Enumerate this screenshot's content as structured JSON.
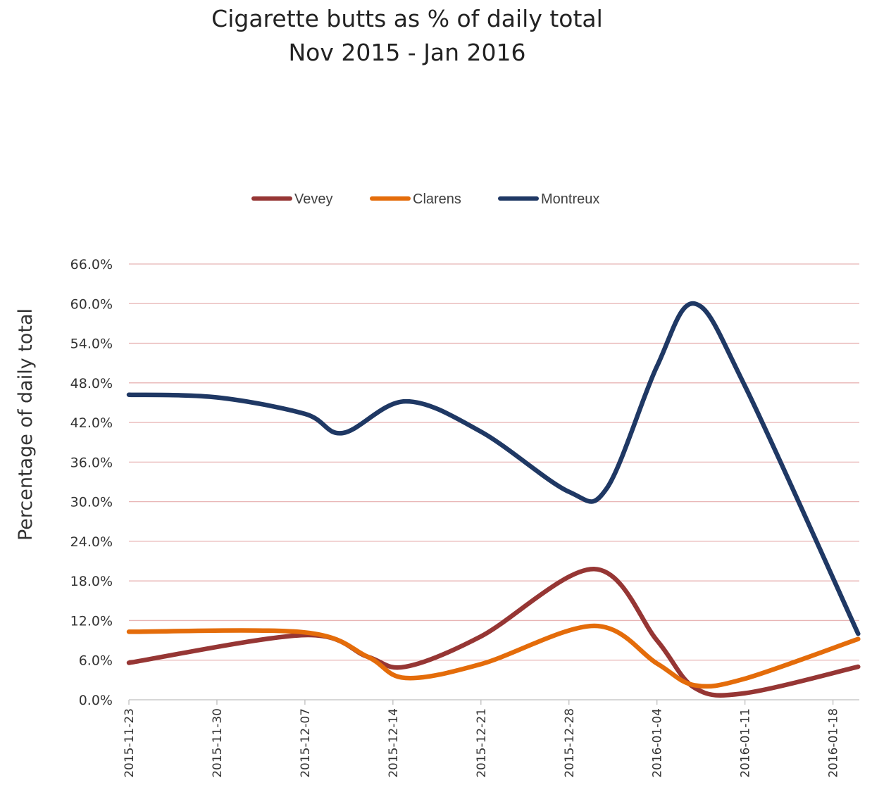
{
  "chart_data": {
    "type": "line",
    "title": "Cigarette butts as % of daily total",
    "subtitle": "Nov  2015 - Jan  2016",
    "xlabel": "",
    "ylabel": "Percentage of daily total",
    "ylim": [
      0,
      66
    ],
    "yticks": [
      "0.0%",
      "6.0%",
      "12.0%",
      "18.0%",
      "24.0%",
      "30.0%",
      "36.0%",
      "42.0%",
      "48.0%",
      "54.0%",
      "60.0%",
      "66.0%"
    ],
    "xlim": [
      "2015-11-23",
      "2016-01-20"
    ],
    "xticks": [
      "2015-11-23",
      "2015-11-30",
      "2015-12-07",
      "2015-12-14",
      "2015-12-21",
      "2015-12-28",
      "2016-01-04",
      "2016-01-11",
      "2016-01-18"
    ],
    "grid": "horizontal",
    "gridColor": "#e8b4b4",
    "legend": "top-center",
    "smooth": true,
    "series": [
      {
        "name": "Vevey",
        "color": "#963634",
        "points": [
          [
            "2015-11-23",
            5.6
          ],
          [
            "2015-12-07",
            9.8
          ],
          [
            "2015-12-12",
            6.5
          ],
          [
            "2015-12-15",
            5.0
          ],
          [
            "2015-12-21",
            9.6
          ],
          [
            "2015-12-30",
            19.8
          ],
          [
            "2016-01-04",
            9.0
          ],
          [
            "2016-01-07",
            1.8
          ],
          [
            "2016-01-11",
            1.0
          ],
          [
            "2016-01-20",
            5.0
          ]
        ]
      },
      {
        "name": "Clarens",
        "color": "#e46c0a",
        "points": [
          [
            "2015-11-23",
            10.3
          ],
          [
            "2015-12-07",
            10.2
          ],
          [
            "2015-12-12",
            6.5
          ],
          [
            "2015-12-15",
            3.3
          ],
          [
            "2015-12-21",
            5.4
          ],
          [
            "2015-12-30",
            11.2
          ],
          [
            "2016-01-04",
            5.5
          ],
          [
            "2016-01-07",
            2.2
          ],
          [
            "2016-01-11",
            3.2
          ],
          [
            "2016-01-20",
            9.2
          ]
        ]
      },
      {
        "name": "Montreux",
        "color": "#1f3864",
        "points": [
          [
            "2015-11-23",
            46.2
          ],
          [
            "2015-11-30",
            45.8
          ],
          [
            "2015-12-07",
            43.3
          ],
          [
            "2015-12-10",
            40.4
          ],
          [
            "2015-12-15",
            45.2
          ],
          [
            "2015-12-21",
            40.6
          ],
          [
            "2015-12-28",
            31.5
          ],
          [
            "2015-12-31",
            32.0
          ],
          [
            "2016-01-04",
            50.5
          ],
          [
            "2016-01-07",
            60.0
          ],
          [
            "2016-01-11",
            47.5
          ],
          [
            "2016-01-20",
            10.0
          ]
        ]
      }
    ]
  }
}
